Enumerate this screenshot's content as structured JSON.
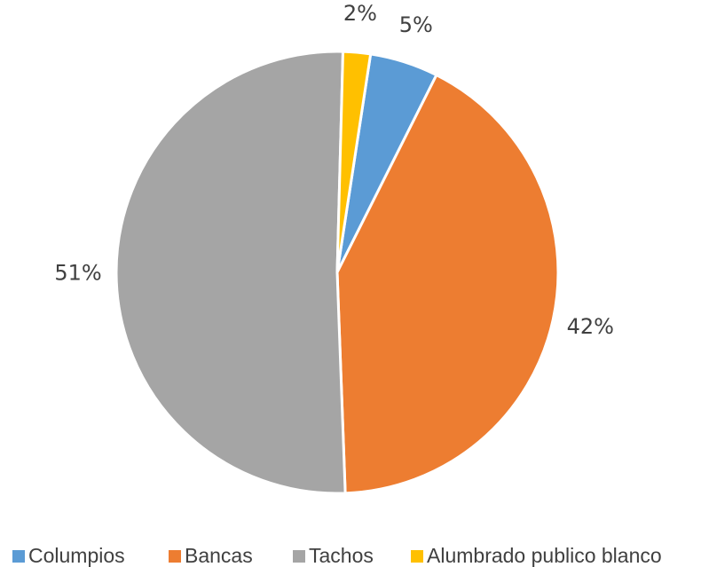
{
  "chart_data": {
    "type": "pie",
    "categories": [
      "Columpios",
      "Bancas",
      "Tachos",
      "Alumbrado publico blanco"
    ],
    "values": [
      5,
      42,
      51,
      2
    ],
    "value_labels": [
      "5%",
      "42%",
      "51%",
      "2%"
    ],
    "colors": [
      "#5b9bd5",
      "#ed7d31",
      "#a5a5a5",
      "#ffc000"
    ],
    "legend": "bottom"
  }
}
